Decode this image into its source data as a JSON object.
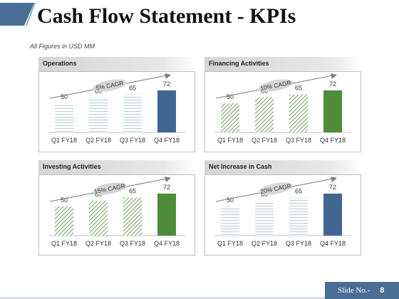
{
  "title": "Cash Flow Statement - KPIs",
  "subtitle": "All Figures in USD MM",
  "slide": {
    "label": "Slide No.-",
    "number": "8"
  },
  "colors": {
    "blue_accent": "#3f6790",
    "green_accent": "#4e8b3a",
    "pattern_light": "#b9cfd8",
    "pattern_green": "#7aa669"
  },
  "chart_data": [
    {
      "type": "bar",
      "title": "Operations",
      "categories": [
        "Q1 FY18",
        "Q2 FY18",
        "Q3 FY18",
        "Q4 FY18"
      ],
      "values": [
        50,
        60,
        65,
        72
      ],
      "annotation": "5% CAGR",
      "theme": "blue",
      "ylim": [
        0,
        90
      ],
      "grid": false
    },
    {
      "type": "bar",
      "title": "Financing Activities",
      "categories": [
        "Q1 FY18",
        "Q2 FY18",
        "Q3 FY18",
        "Q4 FY18"
      ],
      "values": [
        50,
        60,
        65,
        72
      ],
      "annotation": "10% CAGR",
      "theme": "green",
      "ylim": [
        0,
        90
      ],
      "grid": false
    },
    {
      "type": "bar",
      "title": "Investing Activities",
      "categories": [
        "Q1 FY18",
        "Q2 FY18",
        "Q3 FY18",
        "Q4 FY18"
      ],
      "values": [
        50,
        60,
        65,
        72
      ],
      "annotation": "15% CAGR",
      "theme": "green",
      "ylim": [
        0,
        90
      ],
      "grid": false
    },
    {
      "type": "bar",
      "title": "Net Increase in Cash",
      "categories": [
        "Q1 FY18",
        "Q2 FY18",
        "Q3 FY18",
        "Q4 FY18"
      ],
      "values": [
        50,
        60,
        65,
        72
      ],
      "annotation": "20% CAGR",
      "theme": "blue",
      "ylim": [
        0,
        90
      ],
      "grid": false
    }
  ]
}
